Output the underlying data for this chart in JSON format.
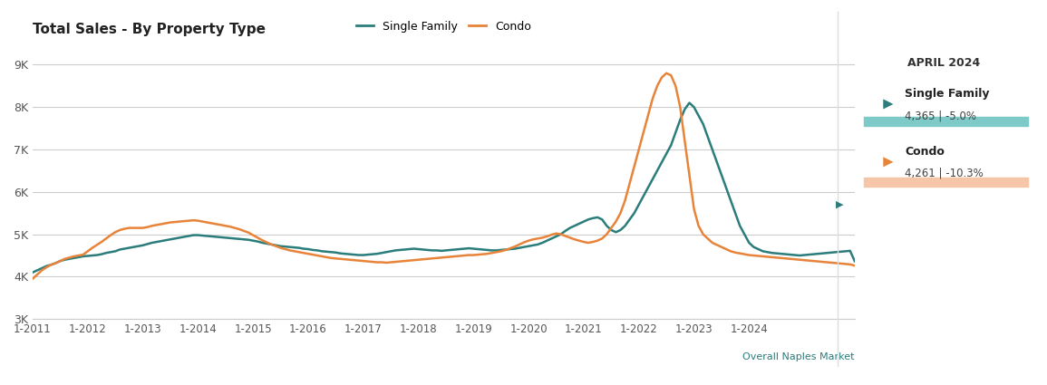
{
  "title": "Total Sales - By Property Type",
  "sf_color": "#2a7d7b",
  "condo_color": "#e8833a",
  "sf_bar_color": "#7ecac8",
  "condo_bar_color": "#f5c6a8",
  "bg_color": "#ffffff",
  "grid_color": "#cccccc",
  "ylim": [
    3000,
    9500
  ],
  "yticks": [
    3000,
    4000,
    5000,
    6000,
    7000,
    8000,
    9000
  ],
  "ytick_labels": [
    "3K",
    "4K",
    "5K",
    "6K",
    "7K",
    "8K",
    "9K"
  ],
  "xtick_labels": [
    "1-2011",
    "1-2012",
    "1-2013",
    "1-2014",
    "1-2015",
    "1-2016",
    "1-2017",
    "1-2018",
    "1-2019",
    "1-2020",
    "1-2021",
    "1-2022",
    "1-2023",
    "1-2024"
  ],
  "legend_sf": "Single Family",
  "legend_condo": "Condo",
  "sidebar_title": "APRIL 2024",
  "sf_value": "4,365 | -5.0%",
  "condo_value": "4,261 | -10.3%",
  "footer": "Overall Naples Market",
  "sf_data": [
    4100,
    4150,
    4200,
    4250,
    4280,
    4320,
    4370,
    4400,
    4420,
    4440,
    4460,
    4480,
    4490,
    4500,
    4510,
    4530,
    4560,
    4580,
    4600,
    4640,
    4660,
    4680,
    4700,
    4720,
    4740,
    4770,
    4800,
    4820,
    4840,
    4860,
    4880,
    4900,
    4920,
    4940,
    4960,
    4980,
    4980,
    4970,
    4960,
    4950,
    4940,
    4930,
    4920,
    4910,
    4900,
    4890,
    4880,
    4870,
    4850,
    4830,
    4800,
    4780,
    4760,
    4740,
    4720,
    4710,
    4700,
    4690,
    4680,
    4660,
    4650,
    4630,
    4620,
    4600,
    4590,
    4580,
    4570,
    4550,
    4540,
    4530,
    4520,
    4510,
    4510,
    4520,
    4530,
    4540,
    4560,
    4580,
    4600,
    4620,
    4630,
    4640,
    4650,
    4660,
    4650,
    4640,
    4630,
    4620,
    4620,
    4610,
    4620,
    4630,
    4640,
    4650,
    4660,
    4670,
    4660,
    4650,
    4640,
    4630,
    4620,
    4620,
    4630,
    4640,
    4650,
    4660,
    4680,
    4700,
    4720,
    4740,
    4760,
    4800,
    4850,
    4900,
    4950,
    5000,
    5080,
    5150,
    5200,
    5250,
    5300,
    5350,
    5380,
    5400,
    5350,
    5200,
    5100,
    5050,
    5100,
    5200,
    5350,
    5500,
    5700,
    5900,
    6100,
    6300,
    6500,
    6700,
    6900,
    7100,
    7400,
    7700,
    7950,
    8100,
    8000,
    7800,
    7600,
    7300,
    7000,
    6700,
    6400,
    6100,
    5800,
    5500,
    5200,
    5000,
    4800,
    4700,
    4650,
    4600,
    4580,
    4560,
    4550,
    4540,
    4530,
    4520,
    4510,
    4500,
    4510,
    4520,
    4530,
    4540,
    4550,
    4560,
    4570,
    4580,
    4590,
    4600,
    4610,
    4365
  ],
  "condo_data": [
    3950,
    4050,
    4150,
    4220,
    4280,
    4320,
    4370,
    4420,
    4450,
    4480,
    4500,
    4520,
    4600,
    4680,
    4750,
    4820,
    4900,
    4980,
    5050,
    5100,
    5130,
    5150,
    5150,
    5150,
    5150,
    5170,
    5200,
    5220,
    5240,
    5260,
    5280,
    5290,
    5300,
    5310,
    5320,
    5330,
    5320,
    5300,
    5280,
    5260,
    5240,
    5220,
    5200,
    5180,
    5150,
    5120,
    5080,
    5040,
    4980,
    4920,
    4860,
    4810,
    4760,
    4720,
    4680,
    4650,
    4620,
    4600,
    4580,
    4560,
    4540,
    4520,
    4500,
    4480,
    4460,
    4440,
    4430,
    4420,
    4410,
    4400,
    4390,
    4380,
    4370,
    4360,
    4350,
    4340,
    4340,
    4330,
    4340,
    4350,
    4360,
    4370,
    4380,
    4390,
    4400,
    4410,
    4420,
    4430,
    4440,
    4450,
    4460,
    4470,
    4480,
    4490,
    4500,
    4510,
    4510,
    4520,
    4530,
    4540,
    4560,
    4580,
    4600,
    4630,
    4670,
    4710,
    4760,
    4810,
    4850,
    4880,
    4900,
    4920,
    4950,
    4990,
    5020,
    5000,
    4960,
    4920,
    4880,
    4850,
    4820,
    4800,
    4820,
    4850,
    4900,
    5000,
    5150,
    5300,
    5500,
    5800,
    6200,
    6600,
    7000,
    7400,
    7800,
    8200,
    8500,
    8700,
    8800,
    8750,
    8500,
    8000,
    7200,
    6400,
    5600,
    5200,
    5000,
    4900,
    4800,
    4750,
    4700,
    4650,
    4600,
    4570,
    4550,
    4530,
    4510,
    4500,
    4490,
    4480,
    4470,
    4460,
    4450,
    4440,
    4430,
    4420,
    4410,
    4400,
    4390,
    4380,
    4370,
    4360,
    4350,
    4340,
    4330,
    4320,
    4310,
    4300,
    4290,
    4261
  ]
}
